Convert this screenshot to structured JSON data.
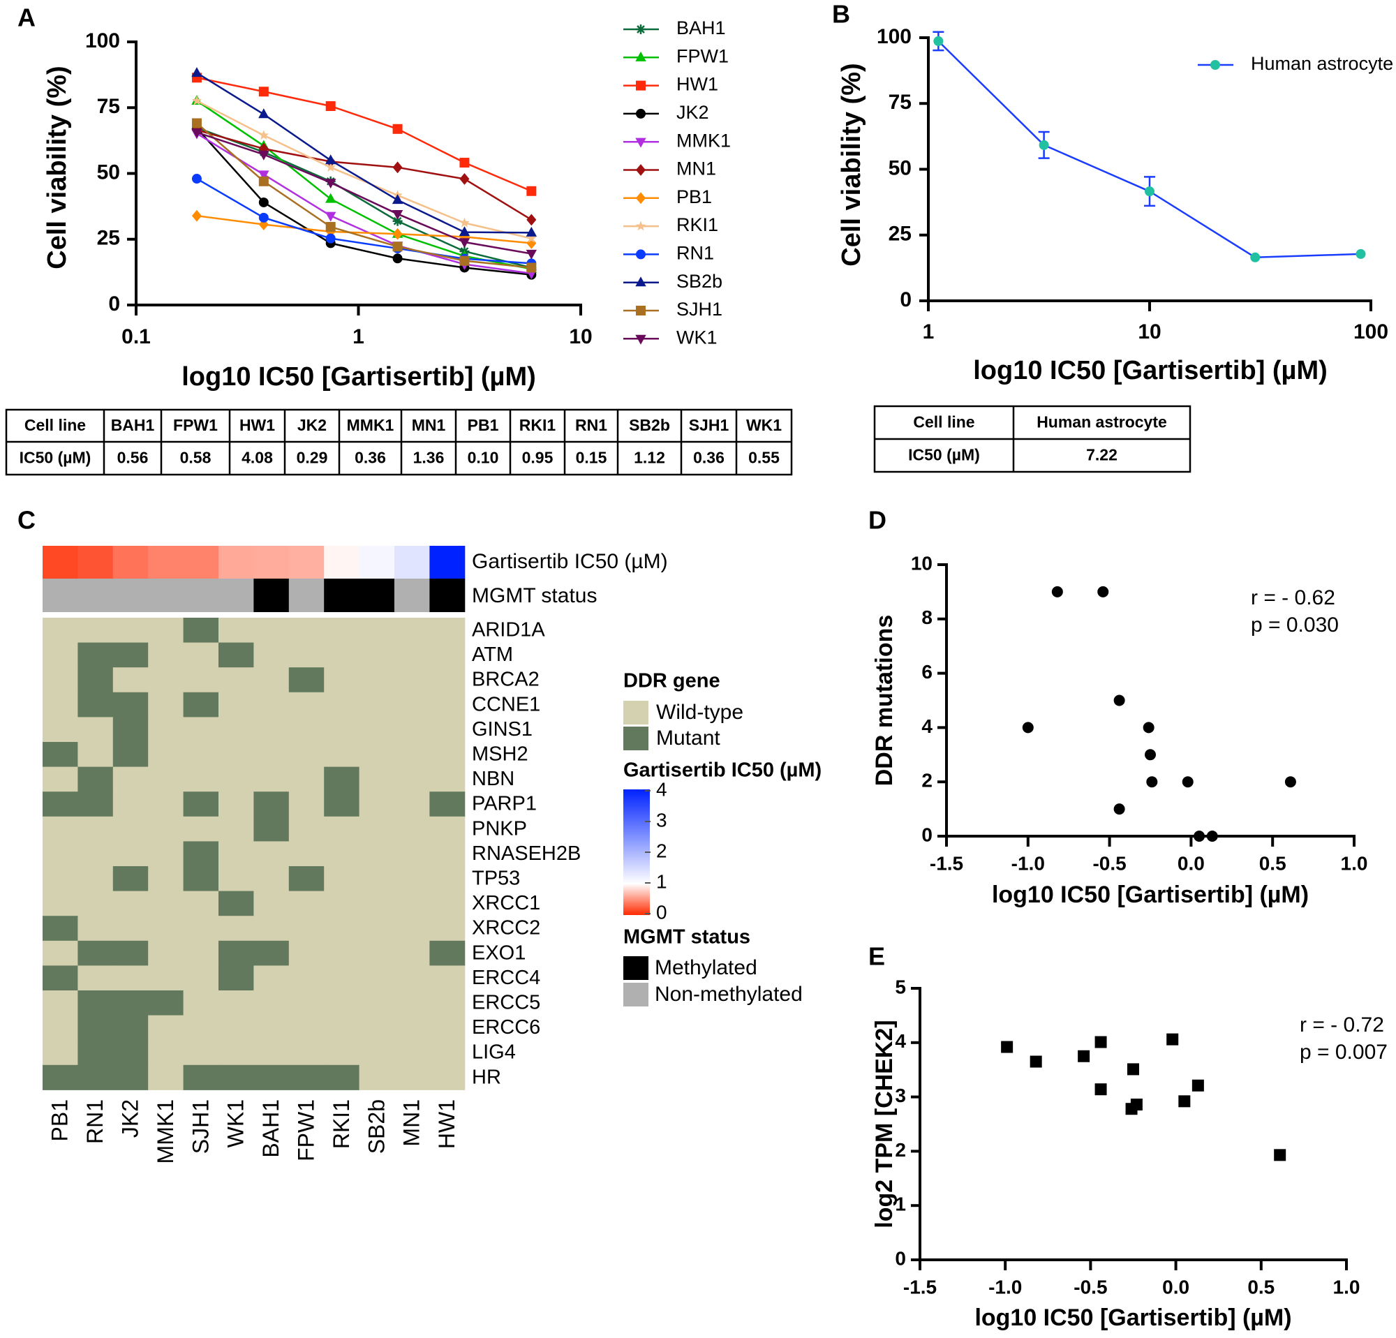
{
  "panel_labels": [
    "A",
    "B",
    "C",
    "D",
    "E"
  ],
  "chart_data": [
    {
      "panel": "A",
      "type": "line",
      "xlabel": "log10 IC50 [Gartisertib] (µM)",
      "ylabel": "Cell viability (%)",
      "xscale": "log",
      "xlim": [
        0.1,
        10
      ],
      "ylim": [
        0,
        100
      ],
      "xticks": [
        "0.1",
        "1",
        "10"
      ],
      "yticks": [
        "0",
        "25",
        "50",
        "75",
        "100"
      ],
      "legend_placement": "right",
      "x": [
        0.1875,
        0.375,
        0.75,
        1.5,
        3,
        6
      ],
      "series": [
        {
          "name": "BAH1",
          "color": "#0b6b3a",
          "marker": "asterisk",
          "values": [
            67.4,
            58.1,
            47.0,
            31.9,
            20.4,
            14.2
          ]
        },
        {
          "name": "FPW1",
          "color": "#00c000",
          "marker": "triangle",
          "values": [
            77.6,
            60.5,
            40.3,
            27.0,
            18.6,
            13.7
          ]
        },
        {
          "name": "HW1",
          "color": "#ff2a0a",
          "marker": "square",
          "values": [
            86.4,
            81.1,
            75.6,
            66.9,
            54.1,
            43.3
          ]
        },
        {
          "name": "JK2",
          "color": "#000000",
          "marker": "circle",
          "values": [
            67.2,
            39.0,
            23.5,
            17.7,
            14.2,
            11.5
          ]
        },
        {
          "name": "MMK1",
          "color": "#b030e0",
          "marker": "triangle-down",
          "values": [
            65.2,
            49.6,
            33.9,
            22.6,
            15.5,
            12.0
          ]
        },
        {
          "name": "MN1",
          "color": "#a01010",
          "marker": "diamond",
          "values": [
            66.5,
            59.4,
            54.5,
            52.3,
            47.9,
            32.4
          ]
        },
        {
          "name": "PB1",
          "color": "#ff8c00",
          "marker": "diamond",
          "values": [
            33.9,
            30.6,
            27.9,
            27.0,
            25.9,
            23.5
          ]
        },
        {
          "name": "RKI1",
          "color": "#f5c08a",
          "marker": "star",
          "values": [
            77.6,
            64.5,
            52.3,
            41.7,
            31.2,
            25.3
          ]
        },
        {
          "name": "RN1",
          "color": "#0a3cff",
          "marker": "circle",
          "values": [
            48.0,
            33.2,
            25.3,
            21.5,
            17.6,
            15.8
          ]
        },
        {
          "name": "SB2b",
          "color": "#0a1a8c",
          "marker": "triangle",
          "values": [
            88.2,
            72.5,
            55.0,
            39.9,
            27.7,
            27.5
          ]
        },
        {
          "name": "SJH1",
          "color": "#a87020",
          "marker": "square",
          "values": [
            69.1,
            47.0,
            29.7,
            22.2,
            16.8,
            14.2
          ]
        },
        {
          "name": "WK1",
          "color": "#6a0a5a",
          "marker": "triangle-down",
          "values": [
            65.6,
            57.2,
            46.5,
            34.6,
            23.9,
            19.5
          ]
        }
      ]
    },
    {
      "panel": "A",
      "type": "table",
      "header": [
        "Cell line",
        "BAH1",
        "FPW1",
        "HW1",
        "JK2",
        "MMK1",
        "MN1",
        "PB1",
        "RKI1",
        "RN1",
        "SB2b",
        "SJH1",
        "WK1"
      ],
      "rows": [
        [
          "IC50 (µM)",
          "0.56",
          "0.58",
          "4.08",
          "0.29",
          "0.36",
          "1.36",
          "0.10",
          "0.95",
          "0.15",
          "1.12",
          "0.36",
          "0.55"
        ]
      ]
    },
    {
      "panel": "B",
      "type": "line",
      "xlabel": "log10 IC50 [Gartisertib] (µM)",
      "ylabel": "Cell viability (%)",
      "xscale": "log",
      "xlim": [
        1,
        100
      ],
      "ylim": [
        0,
        100
      ],
      "xticks": [
        "1",
        "10",
        "100"
      ],
      "yticks": [
        "0",
        "25",
        "50",
        "75",
        "100"
      ],
      "legend_placement": "top-right",
      "x": [
        1.11,
        3.33,
        10,
        30,
        90
      ],
      "series": [
        {
          "name": "Human astrocyte",
          "color": "#1a3cff",
          "marker_color": "#20c0a0",
          "values": [
            98.7,
            59.2,
            41.6,
            16.5,
            17.8
          ],
          "errors": [
            3.5,
            5,
            5.5,
            0.8,
            0.8
          ]
        }
      ]
    },
    {
      "panel": "B",
      "type": "table",
      "header": [
        "Cell line",
        "Human astrocyte"
      ],
      "rows": [
        [
          "IC50 (µM)",
          "7.22"
        ]
      ]
    },
    {
      "panel": "C",
      "type": "heatmap",
      "columns": [
        "PB1",
        "RN1",
        "JK2",
        "MMK1",
        "SJH1",
        "WK1",
        "BAH1",
        "FPW1",
        "RKI1",
        "SB2b",
        "MN1",
        "HW1"
      ],
      "annotation_labels": [
        "Gartisertib IC50 (µM)",
        "MGMT status"
      ],
      "ic50": [
        0.1,
        0.15,
        0.29,
        0.36,
        0.36,
        0.55,
        0.56,
        0.58,
        0.95,
        1.12,
        1.36,
        4.08
      ],
      "mgmt": [
        "Non-methylated",
        "Non-methylated",
        "Non-methylated",
        "Non-methylated",
        "Non-methylated",
        "Non-methylated",
        "Methylated",
        "Non-methylated",
        "Methylated",
        "Methylated",
        "Non-methylated",
        "Methylated"
      ],
      "rows": [
        "ARID1A",
        "ATM",
        "BRCA2",
        "CCNE1",
        "GINS1",
        "MSH2",
        "NBN",
        "PARP1",
        "PNKP",
        "RNASEH2B",
        "TP53",
        "XRCC1",
        "XRCC2",
        "EXO1",
        "ERCC4",
        "ERCC5",
        "ERCC6",
        "LIG4",
        "HR"
      ],
      "values": [
        [
          0,
          0,
          0,
          0,
          1,
          0,
          0,
          0,
          0,
          0,
          0,
          0
        ],
        [
          0,
          1,
          1,
          0,
          0,
          1,
          0,
          0,
          0,
          0,
          0,
          0
        ],
        [
          0,
          1,
          0,
          0,
          0,
          0,
          0,
          1,
          0,
          0,
          0,
          0
        ],
        [
          0,
          1,
          1,
          0,
          1,
          0,
          0,
          0,
          0,
          0,
          0,
          0
        ],
        [
          0,
          0,
          1,
          0,
          0,
          0,
          0,
          0,
          0,
          0,
          0,
          0
        ],
        [
          1,
          0,
          1,
          0,
          0,
          0,
          0,
          0,
          0,
          0,
          0,
          0
        ],
        [
          0,
          1,
          0,
          0,
          0,
          0,
          0,
          0,
          1,
          0,
          0,
          0
        ],
        [
          1,
          1,
          0,
          0,
          1,
          0,
          1,
          0,
          1,
          0,
          0,
          1
        ],
        [
          0,
          0,
          0,
          0,
          0,
          0,
          1,
          0,
          0,
          0,
          0,
          0
        ],
        [
          0,
          0,
          0,
          0,
          1,
          0,
          0,
          0,
          0,
          0,
          0,
          0
        ],
        [
          0,
          0,
          1,
          0,
          1,
          0,
          0,
          1,
          0,
          0,
          0,
          0
        ],
        [
          0,
          0,
          0,
          0,
          0,
          1,
          0,
          0,
          0,
          0,
          0,
          0
        ],
        [
          1,
          0,
          0,
          0,
          0,
          0,
          0,
          0,
          0,
          0,
          0,
          0
        ],
        [
          0,
          1,
          1,
          0,
          0,
          1,
          1,
          0,
          0,
          0,
          0,
          1
        ],
        [
          1,
          0,
          0,
          0,
          0,
          1,
          0,
          0,
          0,
          0,
          0,
          0
        ],
        [
          0,
          1,
          1,
          1,
          0,
          0,
          0,
          0,
          0,
          0,
          0,
          0
        ],
        [
          0,
          1,
          1,
          0,
          0,
          0,
          0,
          0,
          0,
          0,
          0,
          0
        ],
        [
          0,
          1,
          1,
          0,
          0,
          0,
          0,
          0,
          0,
          0,
          0,
          0
        ],
        [
          1,
          1,
          1,
          0,
          1,
          1,
          1,
          1,
          1,
          0,
          0,
          0
        ]
      ],
      "legend": {
        "ddr_title": "DDR gene",
        "ddr_items": [
          {
            "label": "Wild-type",
            "color": "#d4d1b0"
          },
          {
            "label": "Mutant",
            "color": "#62795e"
          }
        ],
        "ic50_title": "Gartisertib IC50 (µM)",
        "ic50_ticks": [
          "4",
          "3",
          "2",
          "1",
          "0"
        ],
        "ic50_range": [
          0,
          4
        ],
        "ic50_colors": {
          "low": "#ff2a00",
          "mid": "#ffffff",
          "high": "#0022ff"
        },
        "mgmt_title": "MGMT status",
        "mgmt_items": [
          {
            "label": "Methylated",
            "color": "#000000"
          },
          {
            "label": "Non-methylated",
            "color": "#b0b0b0"
          }
        ]
      }
    },
    {
      "panel": "D",
      "type": "scatter",
      "xlabel": "log10 IC50 [Gartisertib] (µM)",
      "ylabel": "DDR mutations",
      "xlim": [
        -1.5,
        1.0
      ],
      "ylim": [
        0,
        10
      ],
      "xticks": [
        "-1.5",
        "-1.0",
        "-0.5",
        "0.0",
        "0.5",
        "1.0"
      ],
      "yticks": [
        "0",
        "2",
        "4",
        "6",
        "8",
        "10"
      ],
      "annotation": [
        "r = - 0.62",
        "p = 0.030"
      ],
      "points": [
        [
          -1.0,
          4
        ],
        [
          -0.82,
          9
        ],
        [
          -0.54,
          9
        ],
        [
          -0.44,
          5
        ],
        [
          -0.44,
          1
        ],
        [
          -0.26,
          4
        ],
        [
          -0.25,
          3
        ],
        [
          -0.24,
          2
        ],
        [
          -0.02,
          2
        ],
        [
          0.05,
          0
        ],
        [
          0.13,
          0
        ],
        [
          0.61,
          2
        ]
      ]
    },
    {
      "panel": "E",
      "type": "scatter",
      "xlabel": "log10 IC50 [Gartisertib] (µM)",
      "ylabel": "log2 TPM [CHEK2]",
      "xlim": [
        -1.5,
        1.0
      ],
      "ylim": [
        0,
        5
      ],
      "xticks": [
        "-1.5",
        "-1.0",
        "-0.5",
        "0.0",
        "0.5",
        "1.0"
      ],
      "yticks": [
        "0",
        "1",
        "2",
        "3",
        "4",
        "5"
      ],
      "annotation": [
        "r = - 0.72",
        "p = 0.007"
      ],
      "points": [
        [
          -0.99,
          3.92
        ],
        [
          -0.82,
          3.65
        ],
        [
          -0.54,
          3.75
        ],
        [
          -0.44,
          4.01
        ],
        [
          -0.44,
          3.14
        ],
        [
          -0.25,
          3.51
        ],
        [
          -0.26,
          2.78
        ],
        [
          -0.23,
          2.86
        ],
        [
          -0.02,
          4.06
        ],
        [
          0.05,
          2.92
        ],
        [
          0.13,
          3.21
        ],
        [
          0.61,
          1.93
        ]
      ]
    }
  ]
}
